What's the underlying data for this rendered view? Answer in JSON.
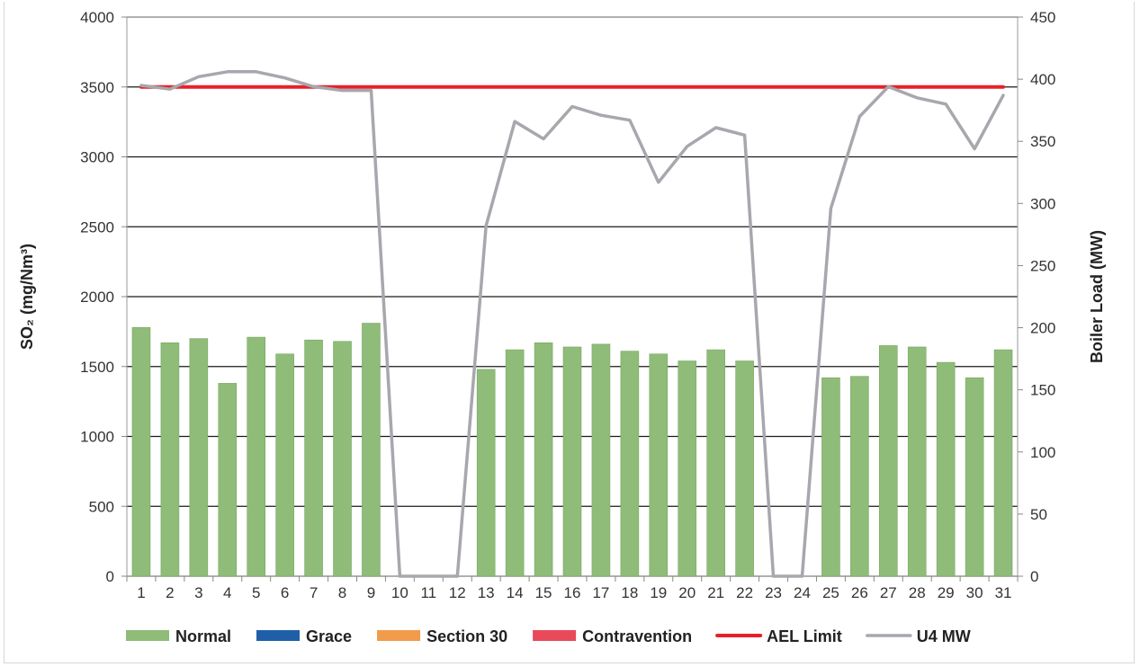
{
  "chart_data": {
    "type": "bar",
    "x": [
      1,
      2,
      3,
      4,
      5,
      6,
      7,
      8,
      9,
      10,
      11,
      12,
      13,
      14,
      15,
      16,
      17,
      18,
      19,
      20,
      21,
      22,
      23,
      24,
      25,
      26,
      27,
      28,
      29,
      30,
      31
    ],
    "ylabel": "SO₂ (mg/Nm³)",
    "y2label": "Boiler Load (MW)",
    "ylim": [
      0,
      4000
    ],
    "y2lim": [
      0,
      450
    ],
    "yticks": [
      0,
      500,
      1000,
      1500,
      2000,
      2500,
      3000,
      3500,
      4000
    ],
    "y2ticks": [
      0,
      50,
      100,
      150,
      200,
      250,
      300,
      350,
      400,
      450
    ],
    "grid": true,
    "legend_position": "bottom",
    "series": [
      {
        "name": "Normal",
        "type": "bar",
        "axis": "left",
        "color": "#8fbc78",
        "values": [
          1780,
          1670,
          1700,
          1380,
          1710,
          1590,
          1690,
          1680,
          1810,
          0,
          0,
          0,
          1480,
          1620,
          1670,
          1640,
          1660,
          1610,
          1590,
          1540,
          1620,
          1540,
          0,
          0,
          1420,
          1430,
          1650,
          1640,
          1530,
          1420,
          1620
        ]
      },
      {
        "name": "Grace",
        "type": "bar",
        "axis": "left",
        "color": "#1f5fa8",
        "values": [
          0,
          0,
          0,
          0,
          0,
          0,
          0,
          0,
          0,
          0,
          0,
          0,
          0,
          0,
          0,
          0,
          0,
          0,
          0,
          0,
          0,
          0,
          0,
          0,
          0,
          0,
          0,
          0,
          0,
          0,
          0
        ]
      },
      {
        "name": "Section 30",
        "type": "bar",
        "axis": "left",
        "color": "#f29b4b",
        "values": [
          0,
          0,
          0,
          0,
          0,
          0,
          0,
          0,
          0,
          0,
          0,
          0,
          0,
          0,
          0,
          0,
          0,
          0,
          0,
          0,
          0,
          0,
          0,
          0,
          0,
          0,
          0,
          0,
          0,
          0,
          0
        ]
      },
      {
        "name": "Contravention",
        "type": "bar",
        "axis": "left",
        "color": "#e84a5a",
        "values": [
          0,
          0,
          0,
          0,
          0,
          0,
          0,
          0,
          0,
          0,
          0,
          0,
          0,
          0,
          0,
          0,
          0,
          0,
          0,
          0,
          0,
          0,
          0,
          0,
          0,
          0,
          0,
          0,
          0,
          0,
          0
        ]
      },
      {
        "name": "AEL Limit",
        "type": "line",
        "axis": "left",
        "color": "#e8202a",
        "values": [
          3500,
          3500,
          3500,
          3500,
          3500,
          3500,
          3500,
          3500,
          3500,
          3500,
          3500,
          3500,
          3500,
          3500,
          3500,
          3500,
          3500,
          3500,
          3500,
          3500,
          3500,
          3500,
          3500,
          3500,
          3500,
          3500,
          3500,
          3500,
          3500,
          3500,
          3500
        ]
      },
      {
        "name": "U4 MW",
        "type": "line",
        "axis": "right",
        "color": "#a7a7ad",
        "values": [
          395,
          392,
          402,
          406,
          406,
          401,
          394,
          391,
          391,
          0,
          0,
          0,
          282,
          366,
          352,
          378,
          371,
          367,
          317,
          346,
          361,
          355,
          0,
          0,
          296,
          370,
          394,
          385,
          380,
          344,
          387
        ]
      }
    ]
  }
}
